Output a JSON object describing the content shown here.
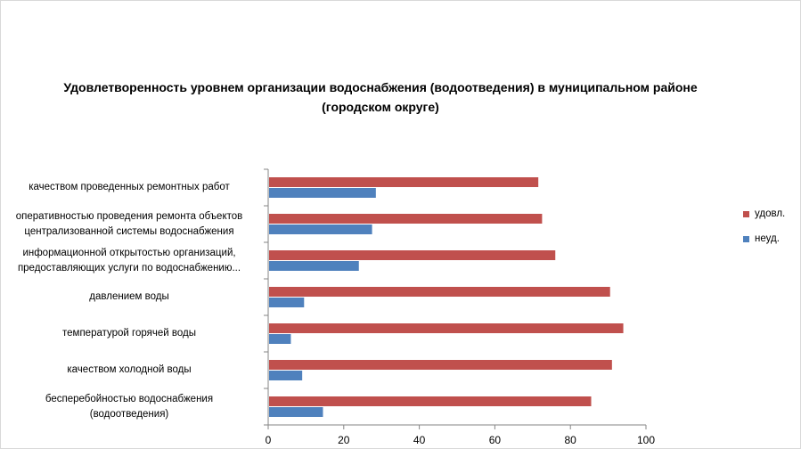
{
  "chart_data": {
    "type": "bar",
    "orientation": "horizontal",
    "title": "Удовлетворенность уровнем организации водоснабжения (водоотведения) в муниципальном районе (городском округе)",
    "title_lines": [
      "Удовлетворенность уровнем организации водоснабжения (водоотведения) в муниципальном районе",
      "(городском округе)"
    ],
    "categories": [
      [
        "качеством  проведенных  ремонтных работ"
      ],
      [
        "оперативностью  проведения  ремонта объектов",
        "централизованной системы водоснабжения"
      ],
      [
        "информационной открытостью организаций,",
        "предоставляющих услуги по водоснабжению..."
      ],
      [
        "давлением  воды"
      ],
      [
        "температурой горячей воды"
      ],
      [
        "качеством холодной воды"
      ],
      [
        "бесперебойностью  водоснабжения",
        "(водоотведения)"
      ]
    ],
    "series": [
      {
        "name": "удовл.",
        "color": "#c0504d",
        "values": [
          71.5,
          72.5,
          76,
          90.5,
          94,
          91,
          85.5
        ]
      },
      {
        "name": "неуд.",
        "color": "#4f81bd",
        "values": [
          28.5,
          27.5,
          24,
          9.5,
          6,
          9,
          14.5
        ]
      }
    ],
    "legend_order": [
      "удовл.",
      "неуд."
    ],
    "xlim": [
      0,
      100
    ],
    "xticks": [
      "0",
      "20",
      "40",
      "60",
      "80",
      "100"
    ],
    "xlabel": "",
    "ylabel": "",
    "grid": false,
    "legend_position": "right"
  }
}
